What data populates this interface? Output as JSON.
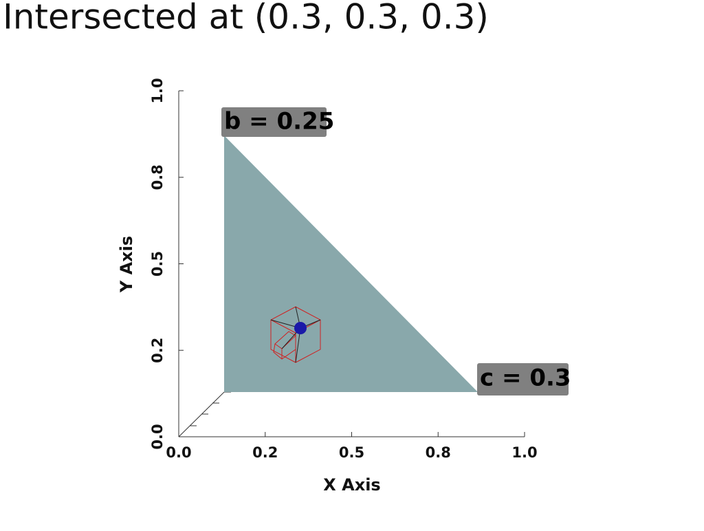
{
  "title": "Intersected at (0.3, 0.3, 0.3)",
  "x_axis": {
    "label": "X Axis",
    "ticks": [
      "0.0",
      "0.2",
      "0.5",
      "0.8",
      "1.0"
    ]
  },
  "y_axis": {
    "label": "Y Axis",
    "ticks": [
      "0.0",
      "0.2",
      "0.5",
      "0.8",
      "1.0"
    ]
  },
  "annotations": [
    "b = 0.25",
    "c = 0.3"
  ]
}
